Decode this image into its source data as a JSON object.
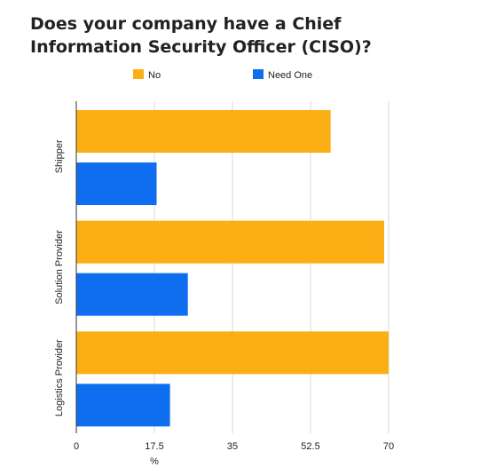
{
  "chart_data": {
    "type": "bar",
    "orientation": "horizontal",
    "title": "Does your company have a Chief Information Security Officer (CISO)?",
    "categories": [
      "Shipper",
      "Solution Provider",
      "Logistics Provider"
    ],
    "series": [
      {
        "name": "No",
        "color": "#FBAF14",
        "values": [
          57,
          69,
          70
        ]
      },
      {
        "name": "Need One",
        "color": "#0F6EF0",
        "values": [
          18,
          25,
          21
        ]
      }
    ],
    "xlabel": "%",
    "ylabel": "",
    "xlim": [
      0,
      70
    ],
    "xticks": [
      "0",
      "17.5",
      "35",
      "52.5",
      "70"
    ],
    "grid": true,
    "legend": "top"
  }
}
